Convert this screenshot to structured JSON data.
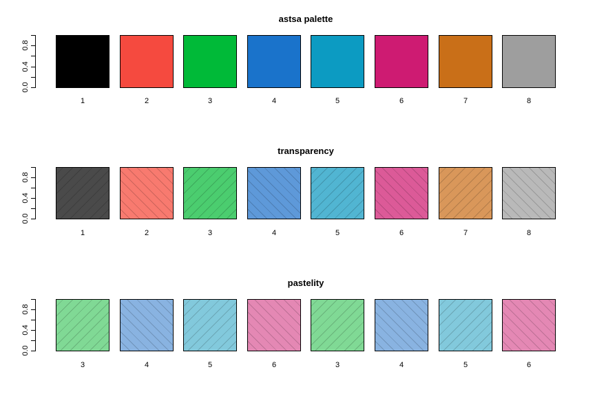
{
  "chart_data": [
    {
      "type": "bar",
      "title": "astsa palette",
      "categories": [
        "1",
        "2",
        "3",
        "4",
        "5",
        "6",
        "7",
        "8"
      ],
      "values": [
        1,
        1,
        1,
        1,
        1,
        1,
        1,
        1
      ],
      "colors": [
        "#000000",
        "#F54A3F",
        "#00BA38",
        "#1A73CB",
        "#0C9BC2",
        "#CE1B72",
        "#C96F18",
        "#9E9E9E"
      ],
      "hatch": false,
      "xlabel": "",
      "ylabel": "",
      "ylim": [
        0,
        1
      ],
      "yticks": [
        0.0,
        0.2,
        0.4,
        0.6,
        0.8,
        1.0
      ],
      "ytick_labels": [
        "0.0",
        "0.4",
        "0.8"
      ]
    },
    {
      "type": "bar",
      "title": "transparency",
      "categories": [
        "1",
        "2",
        "3",
        "4",
        "5",
        "6",
        "7",
        "8"
      ],
      "values": [
        1,
        1,
        1,
        1,
        1,
        1,
        1,
        1
      ],
      "colors": [
        "#4A4A4A",
        "#F87A6F",
        "#4BCD6F",
        "#5E99D9",
        "#51B5D2",
        "#DC5A98",
        "#D9975A",
        "#B9B9B9"
      ],
      "hatch": true,
      "hatch_angles": [
        45,
        -45,
        45,
        -45,
        45,
        -45,
        45,
        -45
      ],
      "xlabel": "",
      "ylabel": "",
      "ylim": [
        0,
        1
      ],
      "yticks": [
        0.0,
        0.2,
        0.4,
        0.6,
        0.8,
        1.0
      ],
      "ytick_labels": [
        "0.0",
        "0.4",
        "0.8"
      ]
    },
    {
      "type": "bar",
      "title": "pastelity",
      "categories": [
        "3",
        "4",
        "5",
        "6",
        "3",
        "4",
        "5",
        "6"
      ],
      "values": [
        1,
        1,
        1,
        1,
        1,
        1,
        1,
        1
      ],
      "colors": [
        "#80D995",
        "#89B3E1",
        "#82C9DC",
        "#E488B4",
        "#80D995",
        "#89B3E1",
        "#82C9DC",
        "#E488B4"
      ],
      "hatch": true,
      "hatch_angles": [
        45,
        -45,
        45,
        -45,
        45,
        -45,
        45,
        -45
      ],
      "xlabel": "",
      "ylabel": "",
      "ylim": [
        0,
        1
      ],
      "yticks": [
        0.0,
        0.2,
        0.4,
        0.6,
        0.8,
        1.0
      ],
      "ytick_labels": [
        "0.0",
        "0.4",
        "0.8"
      ]
    }
  ]
}
